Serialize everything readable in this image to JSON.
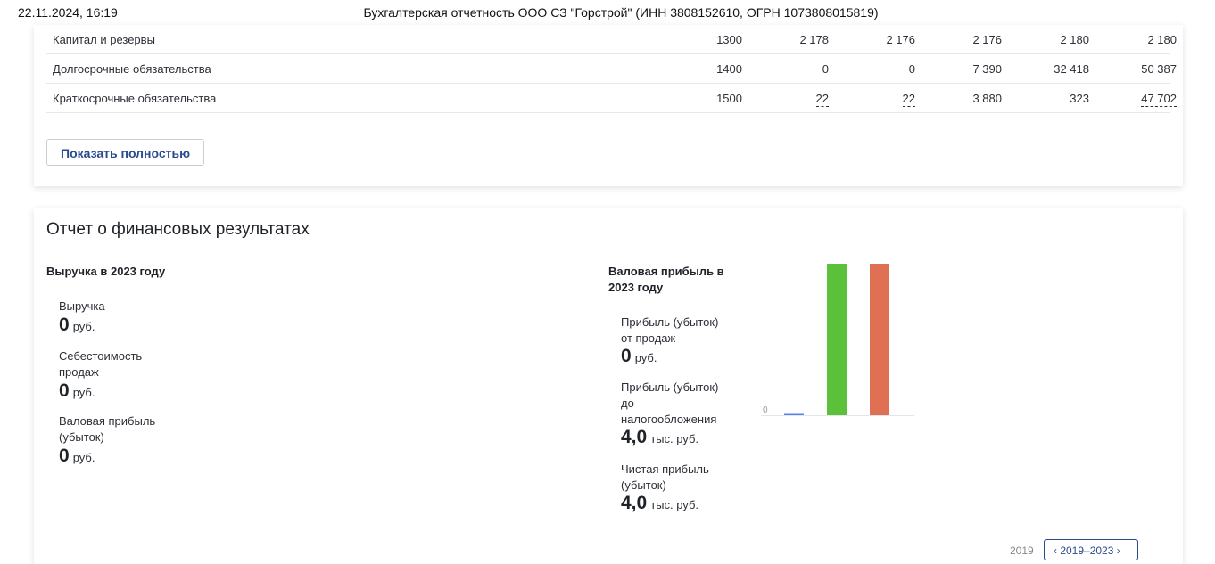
{
  "print_header": {
    "datetime": "22.11.2024, 16:19",
    "title": "Бухгалтерская отчетность ООО СЗ \"Горстрой\" (ИНН 3808152610, ОГРН 1073808015819)"
  },
  "balance": {
    "rows": [
      {
        "name": "Капитал и резервы",
        "code": "1300",
        "values": [
          "2 178",
          "2 176",
          "2 176",
          "2 180",
          "2 180"
        ]
      },
      {
        "name": "Долгосрочные обязательства",
        "code": "1400",
        "values": [
          "0",
          "0",
          "7 390",
          "32 418",
          "50 387"
        ]
      },
      {
        "name": "Краткосрочные обязательства",
        "code": "1500",
        "values": [
          "22",
          "22",
          "3 880",
          "323",
          "47 702"
        ]
      }
    ],
    "show_full_button": "Показать полностью"
  },
  "fin_results": {
    "title": "Отчет о финансовых результатах",
    "revenue_block": {
      "title": "Выручка в 2023 году",
      "items": [
        {
          "label": "Выручка",
          "value": "0",
          "unit": "руб."
        },
        {
          "label": "Себестоимость продаж",
          "value": "0",
          "unit": "руб."
        },
        {
          "label": "Валовая прибыль (убыток)",
          "value": "0",
          "unit": "руб."
        }
      ]
    },
    "profit_block": {
      "title": "Валовая прибыль в 2023 году",
      "items": [
        {
          "label": "Прибыль (убыток) от продаж",
          "value": "0",
          "unit": "руб."
        },
        {
          "label": "Прибыль (убыток) до налогообложения",
          "value": "4,0",
          "unit": "тыс. руб."
        },
        {
          "label": "Чистая прибыль (убыток)",
          "value": "4,0",
          "unit": "тыс. руб."
        }
      ]
    },
    "pager": {
      "label": "2019",
      "button": "‹  2019–2023  ›"
    }
  },
  "chart_data": {
    "type": "bar",
    "categories": [
      "",
      "",
      ""
    ],
    "series": [
      {
        "values": [
          0,
          4.0,
          4.0
        ]
      }
    ],
    "colors": [
      "#5b7ff0",
      "#5cc13a",
      "#e07054"
    ],
    "tick_labels": [
      "0"
    ],
    "ylim": [
      0,
      4.0
    ],
    "grid": false
  }
}
